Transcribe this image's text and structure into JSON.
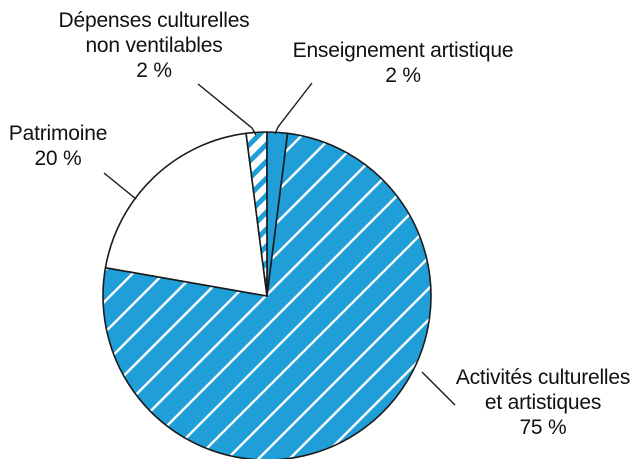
{
  "colors": {
    "fill_blue": "#1f9ed8",
    "fill_white": "#ffffff",
    "stroke": "#1a1a1a",
    "hatch_on_blue": "#ffffff",
    "hatch_on_white": "#1f9ed8",
    "text": "#111111"
  },
  "chart_data": {
    "type": "pie",
    "title": "",
    "slices": [
      {
        "label_lines": [
          "Enseignement artistique"
        ],
        "value_text": "2 %",
        "value": 2,
        "fill": "blue",
        "hatch": false
      },
      {
        "label_lines": [
          "Activités culturelles",
          "et artistiques"
        ],
        "value_text": "75 %",
        "value": 75,
        "fill": "blue",
        "hatch": true
      },
      {
        "label_lines": [
          "Patrimoine"
        ],
        "value_text": "20 %",
        "value": 20,
        "fill": "white",
        "hatch": false
      },
      {
        "label_lines": [
          "Dépenses culturelles",
          "non ventilables"
        ],
        "value_text": "2 %",
        "value": 2,
        "fill": "white",
        "hatch": true
      }
    ]
  }
}
